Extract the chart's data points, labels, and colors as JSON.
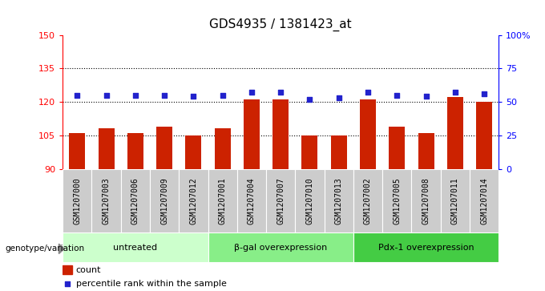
{
  "title": "GDS4935 / 1381423_at",
  "samples": [
    "GSM1207000",
    "GSM1207003",
    "GSM1207006",
    "GSM1207009",
    "GSM1207012",
    "GSM1207001",
    "GSM1207004",
    "GSM1207007",
    "GSM1207010",
    "GSM1207013",
    "GSM1207002",
    "GSM1207005",
    "GSM1207008",
    "GSM1207011",
    "GSM1207014"
  ],
  "counts": [
    106,
    108,
    106,
    109,
    105,
    108,
    121,
    121,
    105,
    105,
    121,
    109,
    106,
    122,
    120
  ],
  "percentiles": [
    55,
    55,
    55,
    55,
    54,
    55,
    57,
    57,
    52,
    53,
    57,
    55,
    54,
    57,
    56
  ],
  "groups": [
    {
      "label": "untreated",
      "start": 0,
      "end": 5,
      "color": "#ccffcc"
    },
    {
      "label": "β-gal overexpression",
      "start": 5,
      "end": 10,
      "color": "#88ee88"
    },
    {
      "label": "Pdx-1 overexpression",
      "start": 10,
      "end": 15,
      "color": "#44cc44"
    }
  ],
  "ylim_left": [
    90,
    150
  ],
  "ylim_right": [
    0,
    100
  ],
  "yticks_left": [
    90,
    105,
    120,
    135,
    150
  ],
  "yticks_right": [
    0,
    25,
    50,
    75,
    100
  ],
  "bar_color": "#cc2200",
  "dot_color": "#2222cc",
  "bar_bottom": 90,
  "grid_lines": [
    105,
    120,
    135
  ],
  "background_color": "#ffffff",
  "bar_width": 0.55,
  "legend_count_label": "count",
  "legend_pct_label": "percentile rank within the sample",
  "genotype_label": "genotype/variation",
  "sample_box_color": "#cccccc",
  "title_fontsize": 11,
  "axis_fontsize": 8,
  "label_fontsize": 7
}
